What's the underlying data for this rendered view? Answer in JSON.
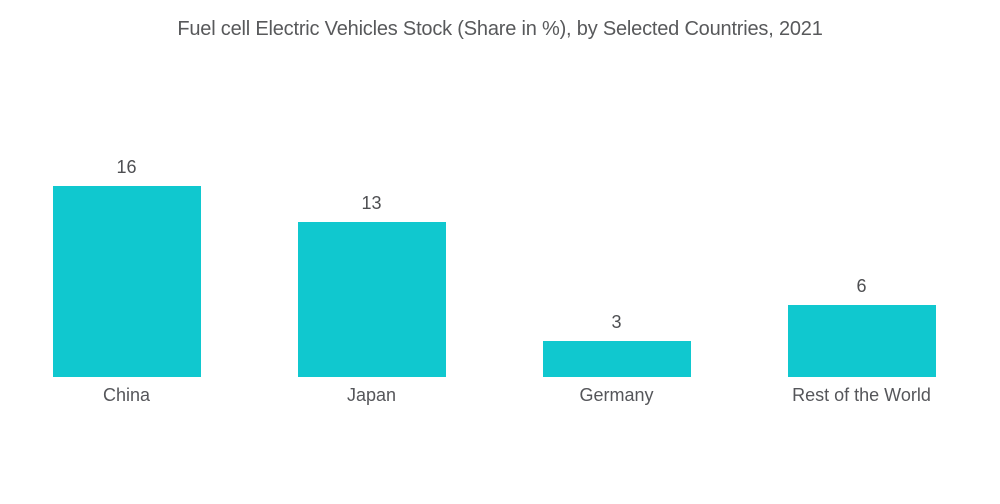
{
  "title": "Fuel cell Electric Vehicles Stock (Share in %), by Selected Countries, 2021",
  "colors": {
    "bar": "#10c8cf",
    "title_text": "#58595b",
    "label_text": "#55565a"
  },
  "chart_data": {
    "type": "bar",
    "title": "Fuel cell Electric Vehicles Stock (Share in %), by Selected Countries, 2021",
    "categories": [
      "China",
      "Japan",
      "Germany",
      "Rest of the World"
    ],
    "values": [
      16,
      13,
      3,
      6
    ],
    "xlabel": "",
    "ylabel": "",
    "ylim": [
      0,
      16
    ],
    "grid": false,
    "legend": false,
    "axes_visible": false,
    "value_labels_shown": true,
    "bar_color": "#10c8cf"
  }
}
